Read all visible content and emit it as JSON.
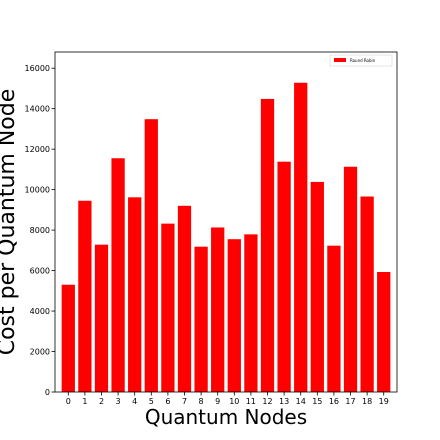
{
  "chart_data": {
    "type": "bar",
    "categories": [
      "0",
      "1",
      "2",
      "3",
      "4",
      "5",
      "6",
      "7",
      "8",
      "9",
      "10",
      "11",
      "12",
      "13",
      "14",
      "15",
      "16",
      "17",
      "18",
      "19"
    ],
    "series": [
      {
        "name": "Round Robin",
        "color": "#ff0000",
        "values": [
          5300,
          9450,
          7280,
          11550,
          9620,
          13480,
          8320,
          9200,
          7180,
          8130,
          7550,
          7790,
          14480,
          11380,
          15280,
          10380,
          7230,
          11130,
          9660,
          5930
        ]
      }
    ],
    "xlabel": "Quantum Nodes",
    "ylabel": "Cost per Quantum Node",
    "ylim": [
      0,
      16800
    ],
    "yticks": [
      0,
      2000,
      4000,
      6000,
      8000,
      10000,
      12000,
      14000,
      16000
    ],
    "grid": false,
    "legend_position": "top-right"
  }
}
